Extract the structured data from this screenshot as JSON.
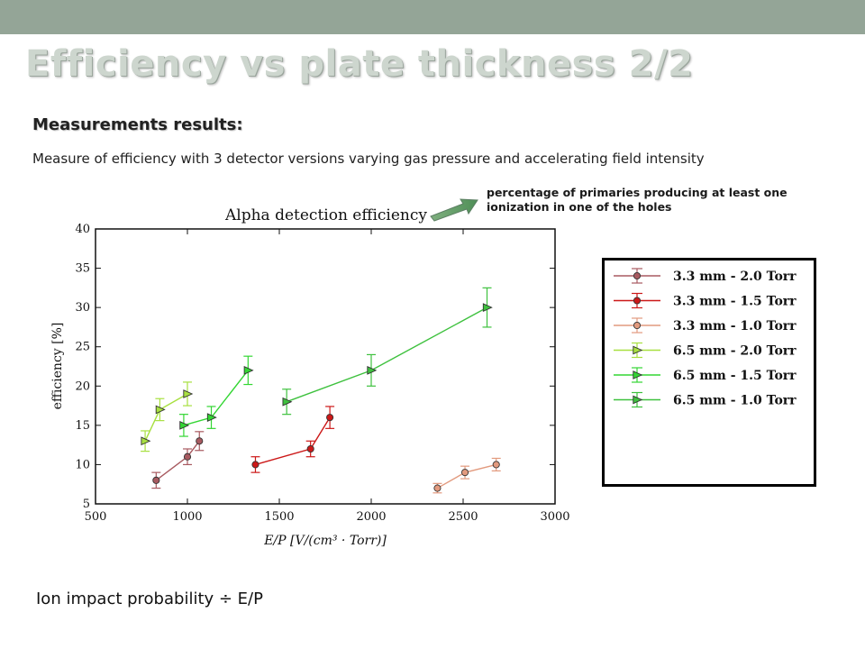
{
  "slide": {
    "title": "Efficiency vs plate thickness 2/2",
    "heading": "Measurements results:",
    "description": "Measure of efficiency with 3 detector versions varying gas pressure and accelerating field intensity",
    "annotation": "percentage of primaries producing at least one ionization in one of the holes",
    "footer": "Ion impact probability ÷ E/P",
    "colors": {
      "top_bar": "#94a597",
      "title": "#cdd6ce"
    }
  },
  "chart_data": {
    "type": "line",
    "title": "Alpha detection efficiency",
    "xlabel": "E/P [V/(cm³ · Torr)]",
    "ylabel": "efficiency [%]",
    "xlim": [
      500,
      3000
    ],
    "ylim": [
      5,
      40
    ],
    "xticks": [
      500,
      1000,
      1500,
      2000,
      2500,
      3000
    ],
    "yticks": [
      5,
      10,
      15,
      20,
      25,
      30,
      35,
      40
    ],
    "grid": false,
    "legend_position": "right, outside",
    "series": [
      {
        "name": "3.3 mm - 2.0 Torr",
        "color": "#a85a60",
        "marker": "circle",
        "x": [
          830,
          1000,
          1065
        ],
        "y": [
          8,
          11,
          13
        ],
        "err": [
          1.0,
          1.0,
          1.2
        ]
      },
      {
        "name": "3.3 mm - 1.5 Torr",
        "color": "#cc1818",
        "marker": "circle",
        "x": [
          1370,
          1670,
          1775
        ],
        "y": [
          10,
          12,
          16
        ],
        "err": [
          1.0,
          1.0,
          1.4
        ]
      },
      {
        "name": "3.3 mm - 1.0 Torr",
        "color": "#e29a7e",
        "marker": "circle",
        "x": [
          2360,
          2510,
          2680
        ],
        "y": [
          7,
          9,
          10
        ],
        "err": [
          0.6,
          0.8,
          0.8
        ]
      },
      {
        "name": "6.5 mm - 2.0 Torr",
        "color": "#a8e040",
        "marker": "triangle",
        "x": [
          770,
          850,
          1000
        ],
        "y": [
          13,
          17,
          19
        ],
        "err": [
          1.3,
          1.4,
          1.5
        ]
      },
      {
        "name": "6.5 mm - 1.5 Torr",
        "color": "#33d633",
        "marker": "triangle",
        "x": [
          980,
          1130,
          1330
        ],
        "y": [
          15,
          16,
          22
        ],
        "err": [
          1.4,
          1.4,
          1.8
        ]
      },
      {
        "name": "6.5 mm - 1.0 Torr",
        "color": "#3ec13e",
        "marker": "triangle",
        "x": [
          1540,
          2000,
          2630
        ],
        "y": [
          18,
          22,
          30
        ],
        "err": [
          1.6,
          2.0,
          2.5
        ]
      }
    ]
  }
}
